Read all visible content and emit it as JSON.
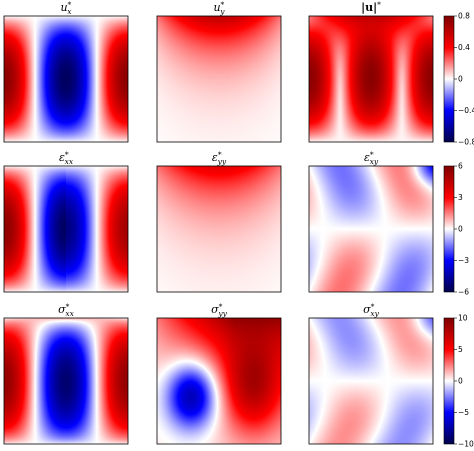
{
  "chart_data": [
    {
      "type": "heatmap",
      "panels": [
        {
          "id": "ux",
          "title": {
            "main": "u",
            "sub": "x",
            "sup": "*"
          },
          "field": "ux"
        },
        {
          "id": "uy",
          "title": {
            "main": "u",
            "sub": "y",
            "sup": "*"
          },
          "field": "uy"
        },
        {
          "id": "umag",
          "title": {
            "pre": "|",
            "main": "u",
            "post": "|",
            "sup": "*",
            "bold": true
          },
          "field": "umag"
        }
      ],
      "colormap": "seismic",
      "colorbar": {
        "vmin": -0.8,
        "vmax": 0.8,
        "ticks": [
          0.8,
          0.4,
          0,
          -0.4,
          -0.8
        ],
        "tick_labels": [
          "0.8",
          "0.4",
          "0",
          "−0.4",
          "−0.8"
        ]
      }
    },
    {
      "type": "heatmap",
      "panels": [
        {
          "id": "exx",
          "title": {
            "main": "ε",
            "sub": "xx",
            "sup": "*"
          },
          "field": "exx"
        },
        {
          "id": "eyy",
          "title": {
            "main": "ε",
            "sub": "yy",
            "sup": "*"
          },
          "field": "eyy"
        },
        {
          "id": "exy",
          "title": {
            "main": "ε",
            "sub": "xy",
            "sup": "*"
          },
          "field": "exy"
        }
      ],
      "colormap": "seismic",
      "colorbar": {
        "vmin": -6,
        "vmax": 6,
        "ticks": [
          6,
          3,
          0,
          -3,
          -6
        ],
        "tick_labels": [
          "6",
          "3",
          "0",
          "−3",
          "−6"
        ]
      }
    },
    {
      "type": "heatmap",
      "panels": [
        {
          "id": "sxx",
          "title": {
            "main": "σ",
            "sub": "xx",
            "sup": "*"
          },
          "field": "sxx"
        },
        {
          "id": "syy",
          "title": {
            "main": "σ",
            "sub": "yy",
            "sup": "*"
          },
          "field": "syy"
        },
        {
          "id": "sxy",
          "title": {
            "main": "σ",
            "sub": "xy",
            "sup": "*"
          },
          "field": "sxy"
        }
      ],
      "colormap": "seismic",
      "colorbar": {
        "vmin": -10,
        "vmax": 10,
        "ticks": [
          10,
          5,
          0,
          -5,
          -10
        ],
        "tick_labels": [
          "10",
          "5",
          "0",
          "−5",
          "−10"
        ]
      }
    }
  ]
}
